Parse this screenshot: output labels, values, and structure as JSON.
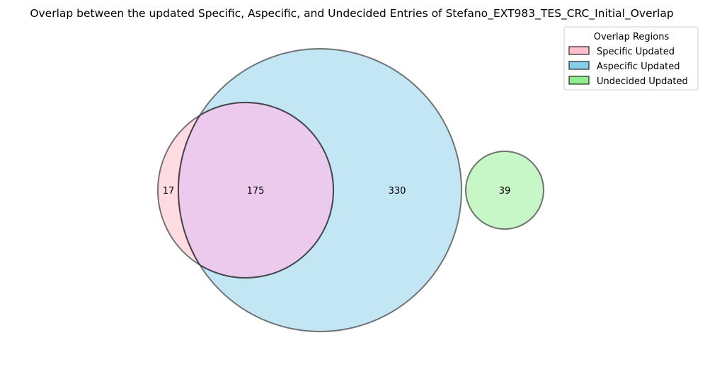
{
  "title": "Overlap between the updated Specific, Aspecific, and Undecided Entries of Stefano_EXT983_TES_CRC_Initial_Overlap",
  "sets": [
    {
      "id": "specific",
      "name": "Specific Updated",
      "color": "#ffc0cb"
    },
    {
      "id": "aspecific",
      "name": "Aspecific Updated",
      "color": "#87ceeb"
    },
    {
      "id": "undecided",
      "name": "Undecided Updated",
      "color": "#90ee90"
    }
  ],
  "regions": {
    "specific_only": "17",
    "specific_aspecific": "175",
    "aspecific_only": "330",
    "undecided_only": "39"
  },
  "legend": {
    "title": "Overlap Regions",
    "items": [
      "Specific Updated",
      "Aspecific Updated",
      "Undecided Updated"
    ]
  }
}
